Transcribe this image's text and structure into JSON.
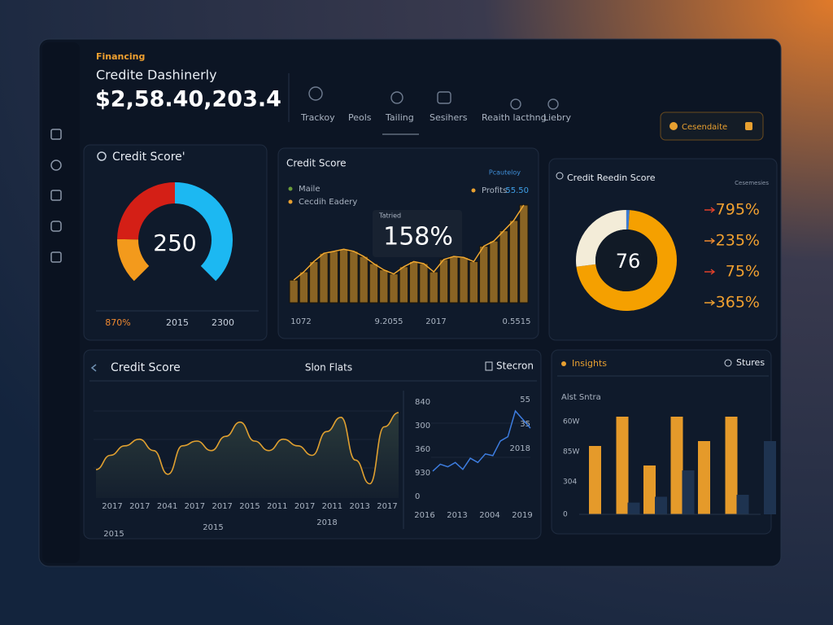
{
  "header": {
    "eyebrow": "Financing",
    "title": "Credite Dashinerly",
    "amount": "$2,58.40,203.4"
  },
  "nav": [
    "Trackoy",
    "Peols",
    "Tailing",
    "Sesihers",
    "Reaith lacthng",
    "Liebry"
  ],
  "button": "Cesendaite",
  "gauge": {
    "title": "Credit Score'",
    "value": 250,
    "labels": [
      "870%",
      "2015",
      "2300"
    ],
    "segments": [
      {
        "color": "#f39a1c",
        "value": 17
      },
      {
        "color": "#d41f16",
        "value": 33
      },
      {
        "color": "#1cb8f2",
        "value": 50
      }
    ]
  },
  "bars": {
    "title": "Credit Score",
    "link": "Pcauteloy",
    "legend": [
      {
        "name": "Maile",
        "color": "#6a9c3a"
      },
      {
        "name": "Cecdih Eadery",
        "color": "#e8a030"
      },
      {
        "name": "Profits",
        "color": "#e8a030"
      }
    ],
    "legend_value": "55.50",
    "callout_label": "Tatried",
    "callout": "158%",
    "xlabels": [
      "1072",
      "9.2055",
      "2017",
      "0.5515"
    ],
    "color": "#8a6424",
    "values": [
      22,
      30,
      40,
      48,
      50,
      52,
      50,
      45,
      38,
      32,
      28,
      35,
      40,
      38,
      30,
      42,
      45,
      44,
      40,
      55,
      60,
      70,
      80,
      95
    ]
  },
  "donut": {
    "title": "Credit Reedin Score",
    "link": "Cesemesies",
    "value": 76,
    "segments": [
      {
        "color": "#3a7bd5",
        "value": 1
      },
      {
        "color": "#f5a000",
        "value": 72
      },
      {
        "color": "#f3ecd8",
        "value": 27
      }
    ],
    "stats": [
      "795%",
      "235%",
      "75%",
      "365%"
    ]
  },
  "area": {
    "title": "Credit Score",
    "subtitle": "Slon Flats",
    "tab": "Stecron",
    "color": "#e0a030",
    "xlabels": [
      "2017",
      "2017",
      "2041",
      "2017",
      "2017",
      "2015",
      "2011",
      "2017",
      "2011",
      "2013",
      "2017"
    ],
    "xsub": [
      "2015",
      "2015",
      "2018"
    ],
    "values": [
      30,
      45,
      55,
      62,
      50,
      25,
      55,
      60,
      50,
      65,
      80,
      60,
      50,
      62,
      55,
      45,
      70,
      85,
      40,
      15,
      75,
      90
    ]
  },
  "line": {
    "color": "#3d7de0",
    "yleft": [
      "840",
      "300",
      "360",
      "930",
      "0"
    ],
    "yright": [
      "55",
      "35",
      "2018"
    ],
    "xlabels": [
      "2016",
      "2013",
      "2004",
      "2019"
    ],
    "values": [
      20,
      28,
      25,
      30,
      22,
      35,
      30,
      40,
      38,
      55,
      60,
      90,
      80,
      70
    ]
  },
  "insights": {
    "title": "Insights",
    "tab": "Stures",
    "subtitle": "Alst Sntra",
    "ylabels": [
      "60W",
      "85W",
      "304",
      "0"
    ],
    "series": [
      {
        "color": "#e59a2a",
        "values": [
          70,
          100,
          50,
          100,
          75,
          100,
          null
        ]
      },
      {
        "color": "#1e3350",
        "values": [
          null,
          12,
          18,
          45,
          null,
          20,
          75
        ]
      }
    ]
  }
}
